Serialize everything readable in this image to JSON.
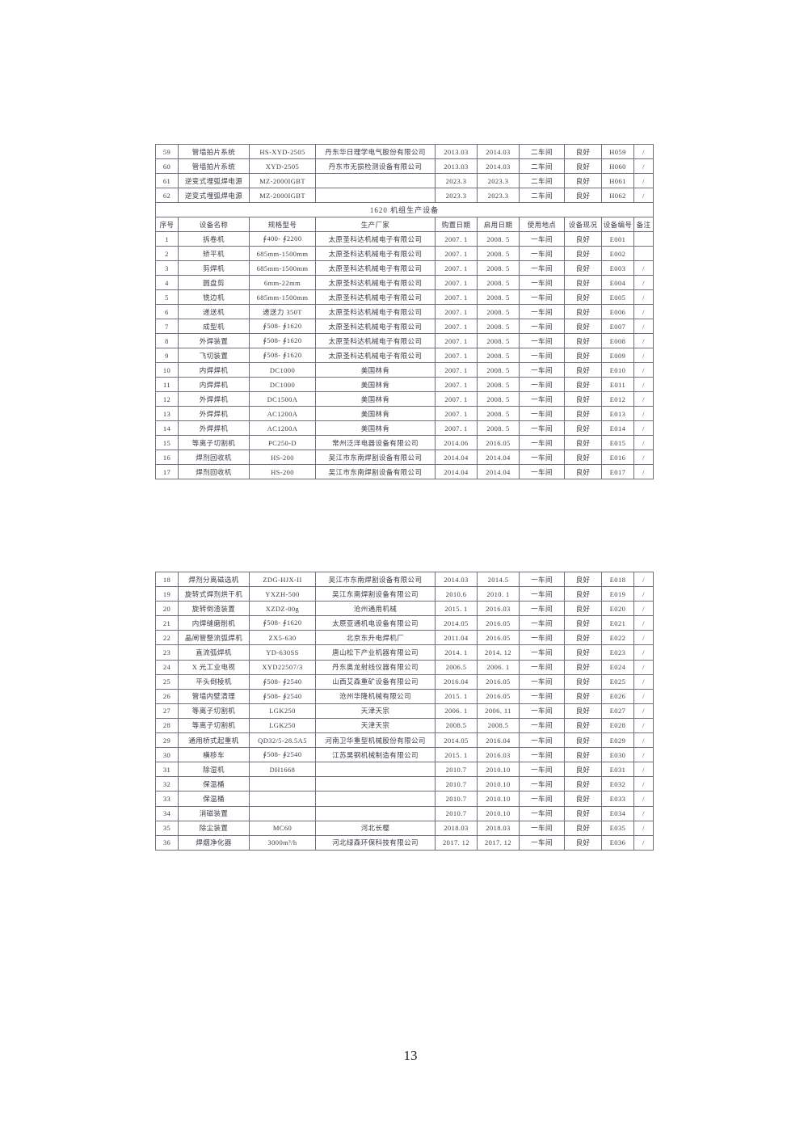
{
  "page": {
    "number": "13"
  },
  "columns": [
    "序号",
    "设备名称",
    "规格型号",
    "生产厂家",
    "购置日期",
    "启用日期",
    "使用地点",
    "设备现况",
    "设备编号",
    "备注"
  ],
  "table_upper": {
    "pre_rows": [
      [
        "59",
        "管墙拍片系统",
        "HS-XYD-2505",
        "丹东华日理学电气股份有限公司",
        "2013.03",
        "2014.03",
        "二车间",
        "良好",
        "H059",
        "/"
      ],
      [
        "60",
        "管墙拍片系统",
        "XYD-2505",
        "丹东市无损检测设备有限公司",
        "2013.03",
        "2014.03",
        "二车间",
        "良好",
        "H060",
        "/"
      ],
      [
        "61",
        "逆变式埋弧焊电源",
        "MZ-2000IGBT",
        "",
        "2023.3",
        "2023.3",
        "二车间",
        "良好",
        "H061",
        "/"
      ],
      [
        "62",
        "逆变式埋弧焊电源",
        "MZ-2000IGBT",
        "",
        "2023.3",
        "2023.3",
        "二车间",
        "良好",
        "H062",
        "/"
      ]
    ],
    "section_title": "1620 机组生产设备",
    "rows": [
      [
        "1",
        "拆卷机",
        "∮400- ∮2200",
        "太原圣科达机械电子有限公司",
        "2007. 1",
        "2008. 5",
        "一车间",
        "良好",
        "E001",
        ""
      ],
      [
        "2",
        "矫平机",
        "685mm-1500mm",
        "太原圣科达机械电子有限公司",
        "2007. 1",
        "2008. 5",
        "一车间",
        "良好",
        "E002",
        ""
      ],
      [
        "3",
        "剪焊机",
        "685mm-1500mm",
        "太原圣科达机械电子有限公司",
        "2007. 1",
        "2008. 5",
        "一车间",
        "良好",
        "E003",
        "/"
      ],
      [
        "4",
        "圆盘剪",
        "6mm-22mm",
        "太原圣科达机械电子有限公司",
        "2007. 1",
        "2008. 5",
        "一车间",
        "良好",
        "E004",
        "/"
      ],
      [
        "5",
        "铣边机",
        "685mm-1500mm",
        "太原圣科达机械电子有限公司",
        "2007. 1",
        "2008. 5",
        "一车间",
        "良好",
        "E005",
        "/"
      ],
      [
        "6",
        "递送机",
        "递送力 350T",
        "太原圣科达机械电子有限公司",
        "2007. 1",
        "2008. 5",
        "一车间",
        "良好",
        "E006",
        "/"
      ],
      [
        "7",
        "成型机",
        "∮508- ∮1620",
        "太原圣科达机械电子有限公司",
        "2007. 1",
        "2008. 5",
        "一车间",
        "良好",
        "E007",
        "/"
      ],
      [
        "8",
        "外焊装置",
        "∮508- ∮1620",
        "太原圣科达机械电子有限公司",
        "2007. 1",
        "2008. 5",
        "一车间",
        "良好",
        "E008",
        "/"
      ],
      [
        "9",
        "飞切装置",
        "∮508- ∮1620",
        "太原圣科达机械电子有限公司",
        "2007. 1",
        "2008. 5",
        "一车间",
        "良好",
        "E009",
        "/"
      ],
      [
        "10",
        "内焊焊机",
        "DC1000",
        "美国林肯",
        "2007. 1",
        "2008. 5",
        "一车间",
        "良好",
        "E010",
        "/"
      ],
      [
        "11",
        "内焊焊机",
        "DC1000",
        "美国林肯",
        "2007. 1",
        "2008. 5",
        "一车间",
        "良好",
        "E011",
        "/"
      ],
      [
        "12",
        "外焊焊机",
        "DC1500A",
        "美国林肯",
        "2007. 1",
        "2008. 5",
        "一车间",
        "良好",
        "E012",
        "/"
      ],
      [
        "13",
        "外焊焊机",
        "AC1200A",
        "美国林肯",
        "2007. 1",
        "2008. 5",
        "一车间",
        "良好",
        "E013",
        "/"
      ],
      [
        "14",
        "外焊焊机",
        "AC1200A",
        "美国林肯",
        "2007. 1",
        "2008. 5",
        "一车间",
        "良好",
        "E014",
        "/"
      ],
      [
        "15",
        "等离子切割机",
        "PC250-D",
        "常州泛洋电器设备有限公司",
        "2014.06",
        "2016.05",
        "一车间",
        "良好",
        "E015",
        "/"
      ],
      [
        "16",
        "焊剂回收机",
        "HS-200",
        "吴江市东南焊割设备有限公司",
        "2014.04",
        "2014.04",
        "一车间",
        "良好",
        "E016",
        "/"
      ],
      [
        "17",
        "焊剂回收机",
        "HS-200",
        "吴江市东南焊割设备有限公司",
        "2014.04",
        "2014.04",
        "一车间",
        "良好",
        "E017",
        "/"
      ]
    ]
  },
  "table_lower": {
    "rows": [
      [
        "18",
        "焊剂分离磁选机",
        "ZDG-HJX-II",
        "吴江市东南焊割设备有限公司",
        "2014.03",
        "2014.5",
        "一车间",
        "良好",
        "E018",
        "/"
      ],
      [
        "19",
        "旋转式焊剂烘干机",
        "YXZH-500",
        "吴江东南焊割设备有限公司",
        "2010.6",
        "2010. 1",
        "一车间",
        "良好",
        "E019",
        "/"
      ],
      [
        "20",
        "旋转倒渣装置",
        "XZDZ-00g",
        "沧州通用机械",
        "2015. 1",
        "2016.03",
        "一车间",
        "良好",
        "E020",
        "/"
      ],
      [
        "21",
        "内焊缝磨削机",
        "∮508- ∮1620",
        "太原亚通机电设备有限公司",
        "2014.05",
        "2016.05",
        "一车间",
        "良好",
        "E021",
        "/"
      ],
      [
        "22",
        "晶闸管整流弧焊机",
        "ZX5-630",
        "北京东升电焊机厂",
        "2011.04",
        "2016.05",
        "一车间",
        "良好",
        "E022",
        "/"
      ],
      [
        "23",
        "直流弧焊机",
        "YD-630SS",
        "唐山松下产业机器有限公司",
        "2014. 1",
        "2014. 12",
        "一车间",
        "良好",
        "E023",
        "/"
      ],
      [
        "24",
        "X 光工业电视",
        "XYD22507/3",
        "丹东奥龙射线仪器有限公司",
        "2006.5",
        "2006. 1",
        "一车间",
        "良好",
        "E024",
        "/"
      ],
      [
        "25",
        "平头倒棱机",
        "∮508- ∮2540",
        "山西艾森重矿设备有限公司",
        "2016.04",
        "2016.05",
        "一车间",
        "良好",
        "E025",
        "/"
      ],
      [
        "26",
        "管墙内壁清理",
        "∮508- ∮2540",
        "沧州华隆机械有限公司",
        "2015. 1",
        "2016.05",
        "一车间",
        "良好",
        "E026",
        "/"
      ],
      [
        "27",
        "等离子切割机",
        "LGK250",
        "天津天宗",
        "2006. 1",
        "2006. 11",
        "一车间",
        "良好",
        "E027",
        "/"
      ],
      [
        "28",
        "等离子切割机",
        "LGK250",
        "天津天宗",
        "2008.5",
        "2008.5",
        "一车间",
        "良好",
        "E028",
        "/"
      ],
      [
        "29",
        "通用桥式起重机",
        "QD32/5-28.5A5",
        "河南卫华重型机械股份有限公司",
        "2014.05",
        "2016.04",
        "一车间",
        "良好",
        "E029",
        "/"
      ],
      [
        "30",
        "横移车",
        "∮508- ∮2540",
        "江苏昊钢机械制造有限公司",
        "2015. 1",
        "2016.03",
        "一车间",
        "良好",
        "E030",
        "/"
      ],
      [
        "31",
        "除湿机",
        "DH1668",
        "",
        "2010.7",
        "2010.10",
        "一车间",
        "良好",
        "E031",
        "/"
      ],
      [
        "32",
        "保温桶",
        "",
        "",
        "2010.7",
        "2010.10",
        "一车间",
        "良好",
        "E032",
        "/"
      ],
      [
        "33",
        "保温桶",
        "",
        "",
        "2010.7",
        "2010.10",
        "一车间",
        "良好",
        "E033",
        "/"
      ],
      [
        "34",
        "消磁装置",
        "",
        "",
        "2010.7",
        "2010.10",
        "一车间",
        "良好",
        "E034",
        "/"
      ],
      [
        "35",
        "除尘装置",
        "MC60",
        "河北长樱",
        "2018.03",
        "2018.03",
        "一车间",
        "良好",
        "E035",
        "/"
      ],
      [
        "36",
        "焊烟净化器",
        "3000m³/h",
        "河北绿森环保科技有限公司",
        "2017. 12",
        "2017. 12",
        "一车间",
        "良好",
        "E036",
        "/"
      ]
    ]
  }
}
